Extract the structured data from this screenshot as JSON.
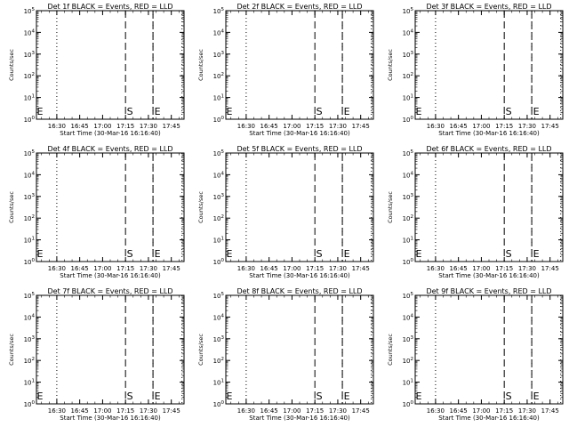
{
  "chart_data": [
    {
      "type": "line",
      "title": "Det 1f BLACK = Events, RED = LLD",
      "xlabel": "Start Time (30-Mar-16 16:16:40)",
      "ylabel": "Counts/sec",
      "x_ticks": [
        "16:30",
        "16:45",
        "17:00",
        "17:15",
        "17:30",
        "17:45"
      ],
      "y_ticks": [
        "10^0",
        "10^1",
        "10^2",
        "10^3",
        "10^4",
        "10^5"
      ],
      "y_scale": "log",
      "series": [],
      "annotations": [
        {
          "label": "E",
          "x": "16:16:40"
        },
        {
          "label": "S",
          "x": "17:15:00"
        },
        {
          "label": "E",
          "x": "17:33:00"
        }
      ]
    },
    {
      "type": "line",
      "title": "Det 2f BLACK = Events, RED = LLD",
      "xlabel": "Start Time (30-Mar-16 16:16:40)",
      "ylabel": "Counts/sec",
      "x_ticks": [
        "16:30",
        "16:45",
        "17:00",
        "17:15",
        "17:30",
        "17:45"
      ],
      "y_ticks": [
        "10^0",
        "10^1",
        "10^2",
        "10^3",
        "10^4",
        "10^5"
      ],
      "y_scale": "log",
      "series": [],
      "annotations": [
        {
          "label": "E",
          "x": "16:16:40"
        },
        {
          "label": "S",
          "x": "17:15:00"
        },
        {
          "label": "E",
          "x": "17:33:00"
        }
      ]
    },
    {
      "type": "line",
      "title": "Det 3f BLACK = Events, RED = LLD",
      "xlabel": "Start Time (30-Mar-16 16:16:40)",
      "ylabel": "Counts/sec",
      "x_ticks": [
        "16:30",
        "16:45",
        "17:00",
        "17:15",
        "17:30",
        "17:45"
      ],
      "y_ticks": [
        "10^0",
        "10^1",
        "10^2",
        "10^3",
        "10^4",
        "10^5"
      ],
      "y_scale": "log",
      "series": [],
      "annotations": [
        {
          "label": "E",
          "x": "16:16:40"
        },
        {
          "label": "S",
          "x": "17:15:00"
        },
        {
          "label": "E",
          "x": "17:33:00"
        }
      ]
    },
    {
      "type": "line",
      "title": "Det 4f BLACK = Events, RED = LLD",
      "xlabel": "Start Time (30-Mar-16 16:16:40)",
      "ylabel": "Counts/sec",
      "x_ticks": [
        "16:30",
        "16:45",
        "17:00",
        "17:15",
        "17:30",
        "17:45"
      ],
      "y_ticks": [
        "10^0",
        "10^1",
        "10^2",
        "10^3",
        "10^4",
        "10^5"
      ],
      "y_scale": "log",
      "series": [],
      "annotations": [
        {
          "label": "E",
          "x": "16:16:40"
        },
        {
          "label": "S",
          "x": "17:15:00"
        },
        {
          "label": "E",
          "x": "17:33:00"
        }
      ]
    },
    {
      "type": "line",
      "title": "Det 5f BLACK = Events, RED = LLD",
      "xlabel": "Start Time (30-Mar-16 16:16:40)",
      "ylabel": "Counts/sec",
      "x_ticks": [
        "16:30",
        "16:45",
        "17:00",
        "17:15",
        "17:30",
        "17:45"
      ],
      "y_ticks": [
        "10^0",
        "10^1",
        "10^2",
        "10^3",
        "10^4",
        "10^5"
      ],
      "y_scale": "log",
      "series": [],
      "annotations": [
        {
          "label": "E",
          "x": "16:16:40"
        },
        {
          "label": "S",
          "x": "17:15:00"
        },
        {
          "label": "E",
          "x": "17:33:00"
        }
      ]
    },
    {
      "type": "line",
      "title": "Det 6f BLACK = Events, RED = LLD",
      "xlabel": "Start Time (30-Mar-16 16:16:40)",
      "ylabel": "Counts/sec",
      "x_ticks": [
        "16:30",
        "16:45",
        "17:00",
        "17:15",
        "17:30",
        "17:45"
      ],
      "y_ticks": [
        "10^0",
        "10^1",
        "10^2",
        "10^3",
        "10^4",
        "10^5"
      ],
      "y_scale": "log",
      "series": [],
      "annotations": [
        {
          "label": "E",
          "x": "16:16:40"
        },
        {
          "label": "S",
          "x": "17:15:00"
        },
        {
          "label": "E",
          "x": "17:33:00"
        }
      ]
    },
    {
      "type": "line",
      "title": "Det 7f BLACK = Events, RED = LLD",
      "xlabel": "Start Time (30-Mar-16 16:16:40)",
      "ylabel": "Counts/sec",
      "x_ticks": [
        "16:30",
        "16:45",
        "17:00",
        "17:15",
        "17:30",
        "17:45"
      ],
      "y_ticks": [
        "10^0",
        "10^1",
        "10^2",
        "10^3",
        "10^4",
        "10^5"
      ],
      "y_scale": "log",
      "series": [],
      "annotations": [
        {
          "label": "E",
          "x": "16:16:40"
        },
        {
          "label": "S",
          "x": "17:15:00"
        },
        {
          "label": "E",
          "x": "17:33:00"
        }
      ]
    },
    {
      "type": "line",
      "title": "Det 8f BLACK = Events, RED = LLD",
      "xlabel": "Start Time (30-Mar-16 16:16:40)",
      "ylabel": "Counts/sec",
      "x_ticks": [
        "16:30",
        "16:45",
        "17:00",
        "17:15",
        "17:30",
        "17:45"
      ],
      "y_ticks": [
        "10^0",
        "10^1",
        "10^2",
        "10^3",
        "10^4",
        "10^5"
      ],
      "y_scale": "log",
      "series": [],
      "annotations": [
        {
          "label": "E",
          "x": "16:16:40"
        },
        {
          "label": "S",
          "x": "17:15:00"
        },
        {
          "label": "E",
          "x": "17:33:00"
        }
      ]
    },
    {
      "type": "line",
      "title": "Det 9f BLACK = Events, RED = LLD",
      "xlabel": "Start Time (30-Mar-16 16:16:40)",
      "ylabel": "Counts/sec",
      "x_ticks": [
        "16:30",
        "16:45",
        "17:00",
        "17:15",
        "17:30",
        "17:45"
      ],
      "y_ticks": [
        "10^0",
        "10^1",
        "10^2",
        "10^3",
        "10^4",
        "10^5"
      ],
      "y_scale": "log",
      "series": [],
      "annotations": [
        {
          "label": "E",
          "x": "16:16:40"
        },
        {
          "label": "S",
          "x": "17:15:00"
        },
        {
          "label": "E",
          "x": "17:33:00"
        }
      ]
    }
  ]
}
